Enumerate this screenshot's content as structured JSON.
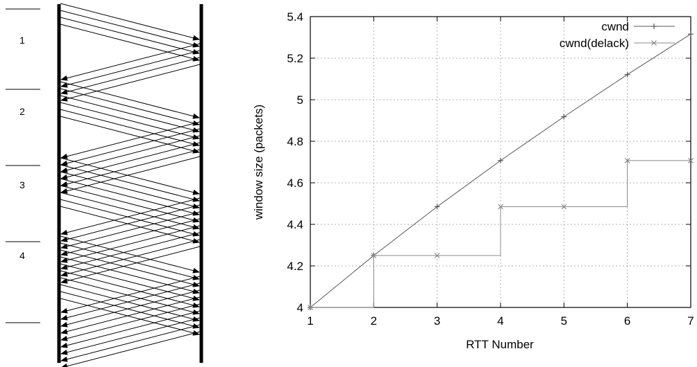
{
  "seq_diagram": {
    "rtt_labels": [
      "1",
      "2",
      "3",
      "4"
    ],
    "arrows_forward_per_rtt": [
      4,
      6,
      8,
      10
    ],
    "arrows_return_per_rtt": [
      4,
      6,
      8,
      9
    ]
  },
  "chart_data": {
    "type": "line",
    "xlabel": "RTT Number",
    "ylabel": "window size (packets)",
    "xlim": [
      1,
      7
    ],
    "ylim": [
      4,
      5.4
    ],
    "x_ticks": [
      "1",
      "2",
      "3",
      "4",
      "5",
      "6",
      "7"
    ],
    "y_ticks": [
      "4",
      "4.2",
      "4.4",
      "4.6",
      "4.8",
      "5",
      "5.2",
      "5.4"
    ],
    "grid": true,
    "legend_position": "top-right",
    "series": [
      {
        "name": "cwnd",
        "marker": "+",
        "color": "#555555",
        "x": [
          1,
          2,
          3,
          4,
          5,
          6,
          7
        ],
        "y": [
          4,
          4.25,
          4.485,
          4.707,
          4.918,
          5.121,
          5.316
        ]
      },
      {
        "name": "cwnd(delack)",
        "marker": "x",
        "color": "#888888",
        "x": [
          1,
          2,
          3,
          4,
          5,
          6,
          7
        ],
        "y": [
          4,
          4.25,
          4.25,
          4.485,
          4.485,
          4.707,
          4.707
        ],
        "step": true
      }
    ]
  }
}
